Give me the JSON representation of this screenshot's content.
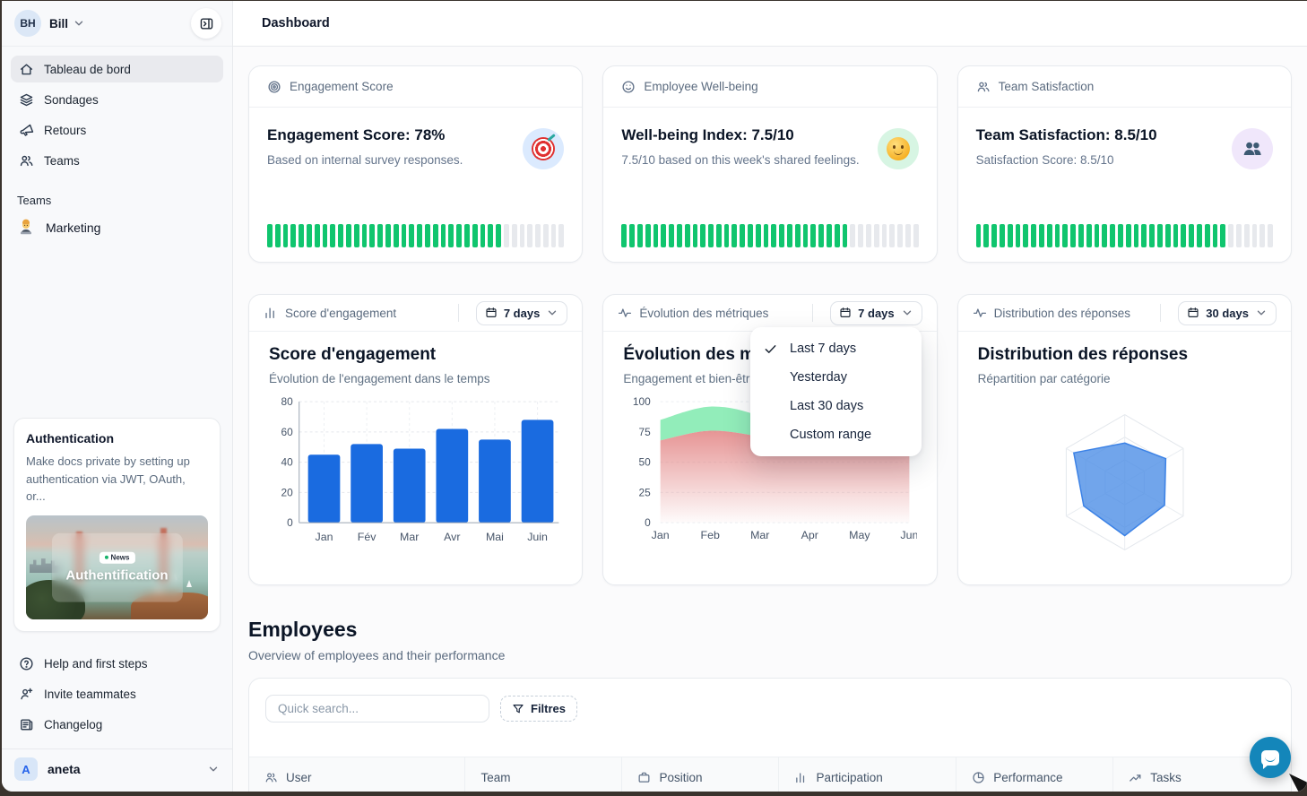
{
  "colors": {
    "progress_green": "#10c56e",
    "bar_blue": "#1a6be0",
    "area_green": "#8cecb6",
    "area_red": "#e07a7a",
    "radar_blue": "#4d8ee6",
    "chat_blue": "#1486ba"
  },
  "sidebar": {
    "user": {
      "initials": "BH",
      "name": "Bill"
    },
    "nav": [
      {
        "label": "Tableau de bord",
        "icon": "home-icon",
        "active": true
      },
      {
        "label": "Sondages",
        "icon": "layers-icon",
        "active": false
      },
      {
        "label": "Retours",
        "icon": "megaphone-icon",
        "active": false
      },
      {
        "label": "Teams",
        "icon": "users-icon",
        "active": false
      }
    ],
    "teams_section": {
      "label": "Teams",
      "items": [
        {
          "label": "Marketing",
          "icon": "technologist-emoji"
        }
      ]
    },
    "promo_card": {
      "title": "Authentication",
      "body": "Make docs private by setting up authentication via JWT, OAuth, or...",
      "badge": "News",
      "image_title": "Authentification"
    },
    "footer_nav": [
      {
        "label": "Help and first steps",
        "icon": "help-circle-icon"
      },
      {
        "label": "Invite teammates",
        "icon": "user-plus-icon"
      },
      {
        "label": "Changelog",
        "icon": "changelog-icon"
      }
    ],
    "workspace": {
      "initial": "A",
      "name": "aneta"
    }
  },
  "header": {
    "title": "Dashboard"
  },
  "stat_cards": [
    {
      "header_label": "Engagement Score",
      "header_icon": "target-icon",
      "title": "Engagement Score: 78%",
      "subtitle": "Based on internal survey responses.",
      "emoji": "target-emoji",
      "progress_pct": 78
    },
    {
      "header_label": "Employee Well-being",
      "header_icon": "smile-icon",
      "title": "Well-being Index: 7.5/10",
      "subtitle": "7.5/10 based on this week's shared feelings.",
      "emoji": "smiling-face-emoji",
      "progress_pct": 75
    },
    {
      "header_label": "Team Satisfaction",
      "header_icon": "users-icon",
      "title": "Team Satisfaction: 8.5/10",
      "subtitle": "Satisfaction Score: 8.5/10",
      "emoji": "two-people-emoji",
      "progress_pct": 85
    }
  ],
  "chart_cards": [
    {
      "header_label": "Score d'engagement",
      "header_icon": "bar-chart-icon",
      "range": "7 days",
      "title": "Score d'engagement",
      "subtitle": "Évolution de l'engagement dans le temps"
    },
    {
      "header_label": "Évolution des métriques",
      "header_icon": "activity-icon",
      "range": "7 days",
      "title": "Évolution des métriques",
      "subtitle": "Engagement et bien-être"
    },
    {
      "header_label": "Distribution des réponses",
      "header_icon": "activity-icon",
      "range": "30 days",
      "title": "Distribution des réponses",
      "subtitle": "Répartition par catégorie"
    }
  ],
  "dropdown_menu": {
    "selected": "Last 7 days",
    "items": [
      "Last 7 days",
      "Yesterday",
      "Last 30 days",
      "Custom range"
    ]
  },
  "employees": {
    "title": "Employees",
    "subtitle": "Overview of employees and their performance",
    "search_placeholder": "Quick search...",
    "filter_label": "Filtres",
    "columns": [
      {
        "label": "User",
        "icon": "users-icon"
      },
      {
        "label": "Team",
        "icon": ""
      },
      {
        "label": "Position",
        "icon": "briefcase-icon"
      },
      {
        "label": "Participation",
        "icon": "bar-chart-icon"
      },
      {
        "label": "Performance",
        "icon": "pie-chart-icon"
      },
      {
        "label": "Tasks",
        "icon": "trending-up-icon"
      }
    ]
  },
  "chart_data": [
    {
      "type": "bar",
      "title": "Score d'engagement",
      "categories": [
        "Jan",
        "Fév",
        "Mar",
        "Avr",
        "Mai",
        "Juin"
      ],
      "values": [
        45,
        52,
        49,
        62,
        55,
        68
      ],
      "ylim": [
        0,
        80
      ],
      "yticks": [
        0,
        20,
        40,
        60,
        80
      ],
      "grid": "dashed",
      "bar_color": "#1a6be0"
    },
    {
      "type": "area",
      "title": "Évolution des métriques",
      "x": [
        "Jan",
        "Feb",
        "Mar",
        "Apr",
        "May",
        "Jun"
      ],
      "series": [
        {
          "name": "Engagement",
          "color": "#8cecb6",
          "values": [
            85,
            96,
            88,
            66,
            64,
            74
          ]
        },
        {
          "name": "Bien-être",
          "color": "#e07a7a",
          "values": [
            68,
            76,
            71,
            61,
            57,
            64
          ]
        }
      ],
      "ylim": [
        0,
        100
      ],
      "yticks": [
        0,
        25,
        50,
        75,
        100
      ],
      "grid": "dashed"
    },
    {
      "type": "radar",
      "title": "Distribution des réponses",
      "axes": 6,
      "max": 100,
      "values": [
        58,
        70,
        68,
        79,
        70,
        87
      ],
      "rings": 3,
      "color": "#4d8ee6"
    }
  ]
}
